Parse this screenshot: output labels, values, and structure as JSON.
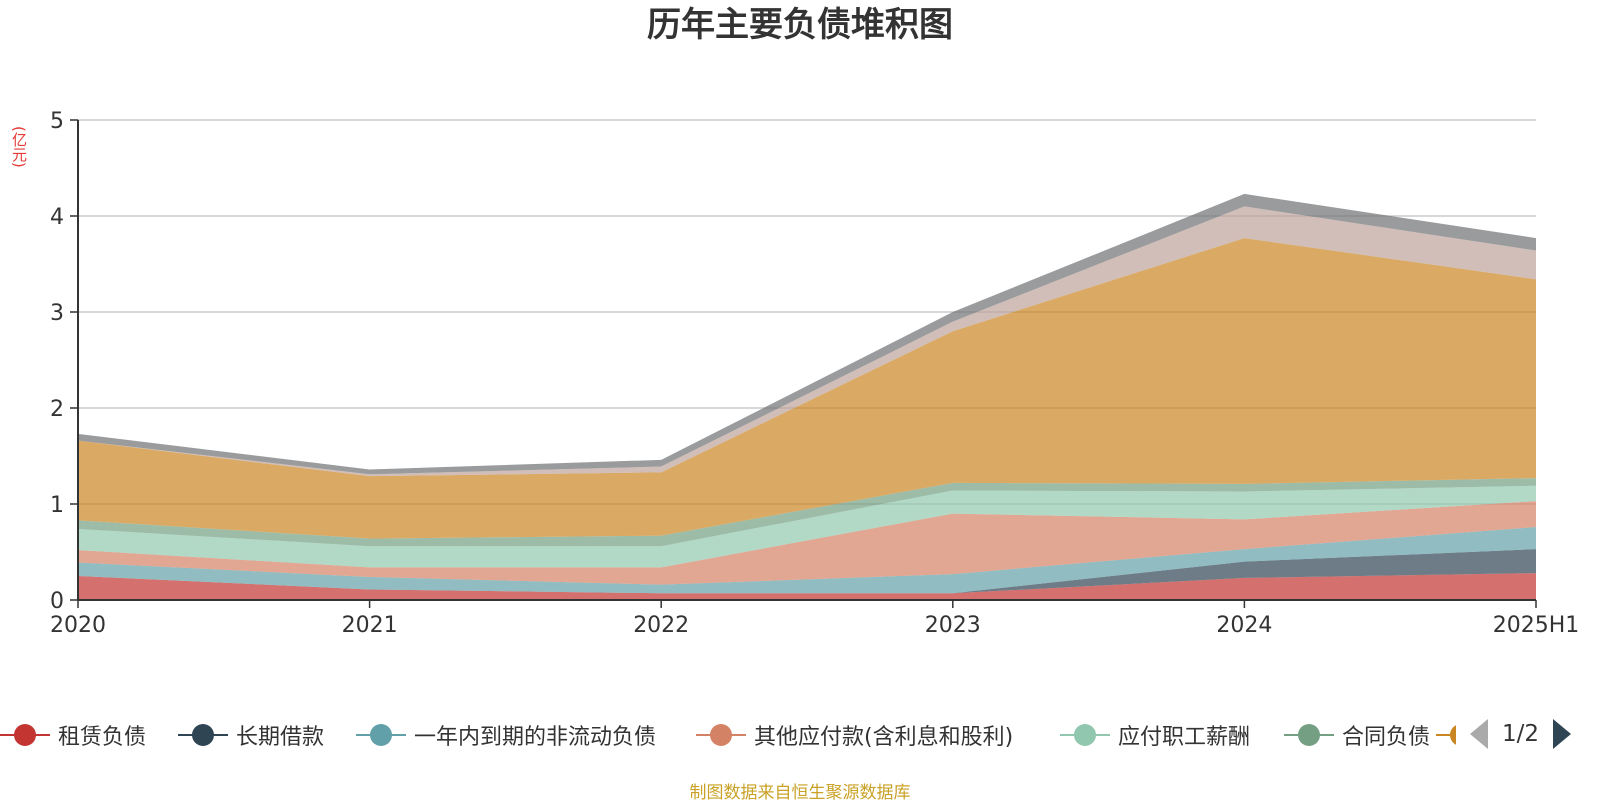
{
  "title": "历年主要负债堆积图",
  "unit_label": "(亿元)",
  "source_note": "制图数据来自恒生聚源数据库",
  "legend_page": "1/2",
  "chart_data": {
    "type": "area",
    "stacked": true,
    "categories": [
      "2020",
      "2021",
      "2022",
      "2023",
      "2024",
      "2025H1"
    ],
    "ylim": [
      0,
      5
    ],
    "yticks": [
      0,
      1,
      2,
      3,
      4,
      5
    ],
    "grid": true,
    "legend_position": "bottom",
    "series": [
      {
        "name": "租赁负债",
        "color": "#c23531",
        "values": [
          0.25,
          0.11,
          0.07,
          0.07,
          0.23,
          0.28
        ]
      },
      {
        "name": "长期借款",
        "color": "#2f4554",
        "values": [
          0.0,
          0.0,
          0.0,
          0.0,
          0.17,
          0.25
        ]
      },
      {
        "name": "一年内到期的非流动负债",
        "color": "#61a0a8",
        "values": [
          0.14,
          0.13,
          0.09,
          0.2,
          0.13,
          0.23
        ]
      },
      {
        "name": "其他应付款(含利息和股利)",
        "color": "#d48265",
        "values": [
          0.13,
          0.1,
          0.18,
          0.63,
          0.31,
          0.27
        ]
      },
      {
        "name": "应付职工薪酬",
        "color": "#91c7ae",
        "values": [
          0.22,
          0.22,
          0.22,
          0.24,
          0.29,
          0.16
        ]
      },
      {
        "name": "合同负债",
        "color": "#749f83",
        "values": [
          0.09,
          0.08,
          0.11,
          0.08,
          0.08,
          0.08
        ]
      },
      {
        "color": "#ca8622",
        "values": [
          0.83,
          0.65,
          0.66,
          1.58,
          2.56,
          2.07
        ]
      },
      {
        "color": "#bda29a",
        "values": [
          0.0,
          0.02,
          0.06,
          0.1,
          0.33,
          0.3
        ]
      },
      {
        "color": "#6e7074",
        "values": [
          0.07,
          0.05,
          0.07,
          0.1,
          0.13,
          0.13
        ]
      }
    ]
  }
}
